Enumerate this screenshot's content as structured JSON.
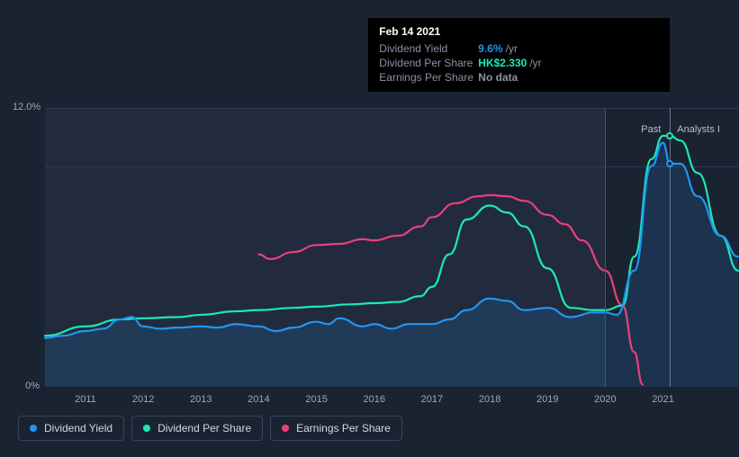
{
  "chart": {
    "type": "line",
    "background_color": "#1a2332",
    "plot_background": "#212b3d",
    "grid_color": "#2e3a50",
    "text_color": "#a0a8b8",
    "x_years": [
      2011,
      2012,
      2013,
      2014,
      2015,
      2016,
      2017,
      2018,
      2019,
      2020,
      2021
    ],
    "x_range": [
      2010.3,
      2022.3
    ],
    "y_range": [
      0,
      12
    ],
    "y_ticks": [
      {
        "v": 0,
        "label": "0%"
      },
      {
        "v": 12,
        "label": "12.0%"
      }
    ],
    "past_split_year": 2020.0,
    "hover_year": 2021.12,
    "annotations": {
      "past": "Past",
      "analysts": "Analysts I"
    },
    "series": {
      "dividend_yield": {
        "label": "Dividend Yield",
        "color": "#2196f3",
        "fill": "rgba(33,150,243,0.15)",
        "points": [
          [
            2010.3,
            2.1
          ],
          [
            2010.6,
            2.2
          ],
          [
            2011,
            2.4
          ],
          [
            2011.3,
            2.5
          ],
          [
            2011.6,
            2.9
          ],
          [
            2011.8,
            3.0
          ],
          [
            2012,
            2.6
          ],
          [
            2012.3,
            2.5
          ],
          [
            2012.6,
            2.55
          ],
          [
            2013,
            2.6
          ],
          [
            2013.3,
            2.55
          ],
          [
            2013.6,
            2.7
          ],
          [
            2014,
            2.6
          ],
          [
            2014.3,
            2.4
          ],
          [
            2014.6,
            2.55
          ],
          [
            2015,
            2.8
          ],
          [
            2015.2,
            2.7
          ],
          [
            2015.4,
            2.95
          ],
          [
            2015.8,
            2.6
          ],
          [
            2016,
            2.7
          ],
          [
            2016.3,
            2.5
          ],
          [
            2016.6,
            2.7
          ],
          [
            2017,
            2.7
          ],
          [
            2017.3,
            2.9
          ],
          [
            2017.6,
            3.3
          ],
          [
            2018,
            3.8
          ],
          [
            2018.3,
            3.7
          ],
          [
            2018.6,
            3.3
          ],
          [
            2019,
            3.4
          ],
          [
            2019.4,
            3.0
          ],
          [
            2019.8,
            3.2
          ],
          [
            2020,
            3.2
          ],
          [
            2020.2,
            3.1
          ],
          [
            2020.5,
            5.0
          ],
          [
            2020.8,
            9.5
          ],
          [
            2021,
            10.5
          ],
          [
            2021.12,
            9.6
          ],
          [
            2021.3,
            9.6
          ],
          [
            2021.6,
            8.2
          ],
          [
            2022,
            6.5
          ],
          [
            2022.3,
            5.6
          ]
        ]
      },
      "dividend_per_share": {
        "label": "Dividend Per Share",
        "color": "#1de9b6",
        "points": [
          [
            2010.3,
            2.2
          ],
          [
            2011,
            2.6
          ],
          [
            2011.6,
            2.9
          ],
          [
            2012,
            2.95
          ],
          [
            2012.6,
            3.0
          ],
          [
            2013,
            3.1
          ],
          [
            2013.6,
            3.25
          ],
          [
            2014,
            3.3
          ],
          [
            2014.6,
            3.4
          ],
          [
            2015,
            3.45
          ],
          [
            2015.6,
            3.55
          ],
          [
            2016,
            3.6
          ],
          [
            2016.4,
            3.65
          ],
          [
            2016.8,
            3.9
          ],
          [
            2017,
            4.3
          ],
          [
            2017.3,
            5.7
          ],
          [
            2017.6,
            7.2
          ],
          [
            2018,
            7.8
          ],
          [
            2018.3,
            7.5
          ],
          [
            2018.6,
            6.9
          ],
          [
            2019,
            5.1
          ],
          [
            2019.4,
            3.4
          ],
          [
            2019.8,
            3.3
          ],
          [
            2020,
            3.3
          ],
          [
            2020.3,
            3.5
          ],
          [
            2020.5,
            5.6
          ],
          [
            2020.8,
            9.8
          ],
          [
            2021,
            10.8
          ],
          [
            2021.12,
            10.8
          ],
          [
            2021.3,
            10.6
          ],
          [
            2021.6,
            9.2
          ],
          [
            2022,
            6.5
          ],
          [
            2022.3,
            5.0
          ]
        ]
      },
      "earnings_per_share": {
        "label": "Earnings Per Share",
        "color": "#ec407a",
        "points": [
          [
            2014,
            5.7
          ],
          [
            2014.2,
            5.5
          ],
          [
            2014.6,
            5.8
          ],
          [
            2015,
            6.1
          ],
          [
            2015.4,
            6.15
          ],
          [
            2015.8,
            6.35
          ],
          [
            2016,
            6.3
          ],
          [
            2016.4,
            6.5
          ],
          [
            2016.8,
            6.9
          ],
          [
            2017,
            7.3
          ],
          [
            2017.4,
            7.9
          ],
          [
            2017.8,
            8.2
          ],
          [
            2018,
            8.25
          ],
          [
            2018.3,
            8.2
          ],
          [
            2018.6,
            8.0
          ],
          [
            2019,
            7.4
          ],
          [
            2019.3,
            7.0
          ],
          [
            2019.6,
            6.3
          ],
          [
            2020,
            5.0
          ],
          [
            2020.3,
            3.5
          ],
          [
            2020.5,
            1.5
          ],
          [
            2020.65,
            0.1
          ]
        ]
      }
    }
  },
  "tooltip": {
    "title": "Feb 14 2021",
    "rows": [
      {
        "label": "Dividend Yield",
        "value": "9.6%",
        "suffix": "/yr",
        "color": "#2196f3"
      },
      {
        "label": "Dividend Per Share",
        "value": "HK$2.330",
        "suffix": "/yr",
        "color": "#1de9b6"
      },
      {
        "label": "Earnings Per Share",
        "value": "No data",
        "suffix": "",
        "color": "#8a92a4"
      }
    ]
  },
  "legend": {
    "items": [
      {
        "label": "Dividend Yield",
        "color": "#2196f3"
      },
      {
        "label": "Dividend Per Share",
        "color": "#1de9b6"
      },
      {
        "label": "Earnings Per Share",
        "color": "#ec407a"
      }
    ]
  }
}
